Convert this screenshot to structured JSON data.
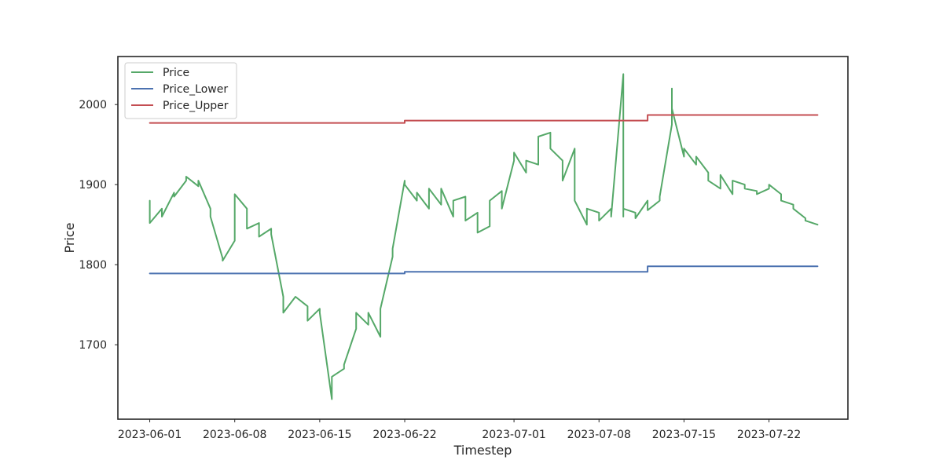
{
  "chart_data": {
    "type": "line",
    "xlabel": "Timestep",
    "ylabel": "Price",
    "x_start": "2023-06-01",
    "x_end": "2023-07-26",
    "xlim": [
      "2023-05-29T09:00",
      "2023-07-28T12:00"
    ],
    "ylim": [
      1607,
      2060
    ],
    "x_ticks": [
      "2023-06-01",
      "2023-06-08",
      "2023-06-15",
      "2023-06-22",
      "2023-07-01",
      "2023-07-08",
      "2023-07-15",
      "2023-07-22"
    ],
    "y_ticks": [
      1700,
      1800,
      1900,
      2000
    ],
    "grid": false,
    "legend": {
      "position": "top-left",
      "entries": [
        "Price",
        "Price_Lower",
        "Price_Upper"
      ]
    },
    "colors": {
      "Price": "#55a868",
      "Price_Lower": "#4c72b0",
      "Price_Upper": "#c44e52"
    },
    "series": [
      {
        "name": "Price",
        "x": [
          "2023-06-01",
          "2023-06-01",
          "2023-06-02",
          "2023-06-02",
          "2023-06-03",
          "2023-06-03",
          "2023-06-04",
          "2023-06-04",
          "2023-06-05",
          "2023-06-05",
          "2023-06-06",
          "2023-06-06",
          "2023-06-07",
          "2023-06-07",
          "2023-06-08",
          "2023-06-08",
          "2023-06-09",
          "2023-06-09",
          "2023-06-10",
          "2023-06-10",
          "2023-06-11",
          "2023-06-11",
          "2023-06-12",
          "2023-06-12",
          "2023-06-13",
          "2023-06-14",
          "2023-06-14",
          "2023-06-15",
          "2023-06-15",
          "2023-06-16",
          "2023-06-16",
          "2023-06-17",
          "2023-06-17",
          "2023-06-18",
          "2023-06-18",
          "2023-06-19",
          "2023-06-19",
          "2023-06-20",
          "2023-06-20",
          "2023-06-21",
          "2023-06-21",
          "2023-06-22",
          "2023-06-22",
          "2023-06-23",
          "2023-06-23",
          "2023-06-24",
          "2023-06-24",
          "2023-06-25",
          "2023-06-25",
          "2023-06-26",
          "2023-06-26",
          "2023-06-27",
          "2023-06-27",
          "2023-06-28",
          "2023-06-28",
          "2023-06-29",
          "2023-06-29",
          "2023-06-30",
          "2023-06-30",
          "2023-07-01",
          "2023-07-01",
          "2023-07-02",
          "2023-07-02",
          "2023-07-03",
          "2023-07-03",
          "2023-07-04",
          "2023-07-04",
          "2023-07-05",
          "2023-07-05",
          "2023-07-06",
          "2023-07-06",
          "2023-07-07",
          "2023-07-07",
          "2023-07-08",
          "2023-07-08",
          "2023-07-09",
          "2023-07-09",
          "2023-07-10",
          "2023-07-10",
          "2023-07-10",
          "2023-07-11",
          "2023-07-11",
          "2023-07-12",
          "2023-07-12",
          "2023-07-13",
          "2023-07-13",
          "2023-07-14",
          "2023-07-14",
          "2023-07-14",
          "2023-07-15",
          "2023-07-15",
          "2023-07-16",
          "2023-07-16",
          "2023-07-17",
          "2023-07-17",
          "2023-07-18",
          "2023-07-18",
          "2023-07-19",
          "2023-07-19",
          "2023-07-20",
          "2023-07-20",
          "2023-07-21",
          "2023-07-21",
          "2023-07-22",
          "2023-07-22",
          "2023-07-23",
          "2023-07-23",
          "2023-07-24",
          "2023-07-24",
          "2023-07-25",
          "2023-07-25",
          "2023-07-26"
        ],
        "values": [
          1880,
          1852,
          1870,
          1860,
          1890,
          1885,
          1905,
          1910,
          1898,
          1905,
          1870,
          1860,
          1808,
          1805,
          1830,
          1888,
          1870,
          1845,
          1852,
          1835,
          1845,
          1838,
          1760,
          1740,
          1760,
          1748,
          1730,
          1745,
          1740,
          1632,
          1660,
          1670,
          1675,
          1720,
          1740,
          1725,
          1740,
          1710,
          1745,
          1810,
          1820,
          1905,
          1900,
          1880,
          1890,
          1870,
          1895,
          1875,
          1895,
          1860,
          1880,
          1885,
          1855,
          1865,
          1840,
          1848,
          1880,
          1892,
          1870,
          1930,
          1940,
          1915,
          1930,
          1925,
          1960,
          1965,
          1945,
          1930,
          1905,
          1945,
          1880,
          1850,
          1870,
          1865,
          1855,
          1870,
          1860,
          2038,
          1860,
          1870,
          1865,
          1858,
          1880,
          1868,
          1880,
          1885,
          1975,
          2020,
          1995,
          1935,
          1945,
          1925,
          1935,
          1915,
          1905,
          1895,
          1912,
          1888,
          1905,
          1900,
          1895,
          1892,
          1888,
          1895,
          1900,
          1888,
          1880,
          1875,
          1870,
          1858,
          1855,
          1850
        ]
      },
      {
        "name": "Price_Lower",
        "x": [
          "2023-06-01",
          "2023-06-22",
          "2023-06-22",
          "2023-07-12",
          "2023-07-12",
          "2023-07-26"
        ],
        "values": [
          1789,
          1789,
          1791,
          1791,
          1798,
          1798
        ]
      },
      {
        "name": "Price_Upper",
        "x": [
          "2023-06-01",
          "2023-06-22",
          "2023-06-22",
          "2023-07-12",
          "2023-07-12",
          "2023-07-26"
        ],
        "values": [
          1977,
          1977,
          1980,
          1980,
          1987,
          1987
        ]
      }
    ]
  }
}
